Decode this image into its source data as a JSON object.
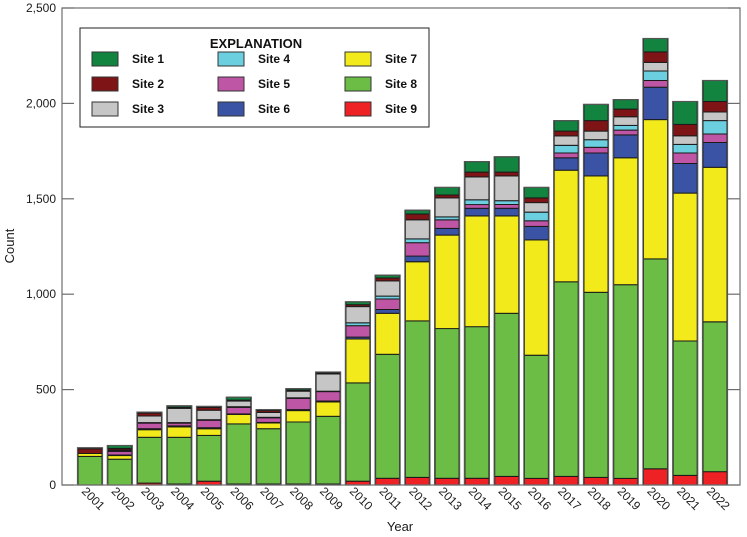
{
  "chart_data": {
    "type": "bar",
    "stacked": true,
    "title": "",
    "xlabel": "Year",
    "ylabel": "Count",
    "ylim": [
      0,
      2500
    ],
    "yticks": [
      0,
      500,
      1000,
      1500,
      2000,
      2500
    ],
    "ytick_labels": [
      "0",
      "500",
      "1,000",
      "1,500",
      "2,000",
      "2,500"
    ],
    "grid": false,
    "legend": {
      "title": "EXPLANATION",
      "placement": "top-left",
      "entries": [
        "Site 1",
        "Site 2",
        "Site 3",
        "Site 4",
        "Site 5",
        "Site 6",
        "Site 7",
        "Site 8",
        "Site 9"
      ]
    },
    "categories": [
      "2001",
      "2002",
      "2003",
      "2004",
      "2005",
      "2006",
      "2007",
      "2008",
      "2009",
      "2010",
      "2011",
      "2012",
      "2013",
      "2014",
      "2015",
      "2016",
      "2017",
      "2018",
      "2019",
      "2020",
      "2021",
      "2022"
    ],
    "stack_order_bottom_to_top": [
      "Site 9",
      "Site 8",
      "Site 7",
      "Site 6",
      "Site 5",
      "Site 4",
      "Site 3",
      "Site 2",
      "Site 1"
    ],
    "series": [
      {
        "name": "Site 1",
        "color": "#138440",
        "values": [
          5,
          15,
          5,
          8,
          5,
          15,
          5,
          8,
          5,
          15,
          15,
          20,
          40,
          55,
          80,
          55,
          55,
          85,
          50,
          70,
          120,
          110
        ]
      },
      {
        "name": "Site 2",
        "color": "#7f1416",
        "values": [
          25,
          8,
          15,
          5,
          15,
          5,
          10,
          5,
          5,
          10,
          15,
          30,
          15,
          25,
          20,
          25,
          25,
          55,
          40,
          55,
          60,
          55
        ]
      },
      {
        "name": "Site 3",
        "color": "#c6c6c6",
        "values": [
          0,
          5,
          35,
          75,
          50,
          30,
          25,
          35,
          90,
          85,
          80,
          100,
          100,
          120,
          130,
          50,
          50,
          45,
          45,
          45,
          45,
          45
        ]
      },
      {
        "name": "Site 4",
        "color": "#6ccfdf",
        "values": [
          0,
          2,
          2,
          2,
          2,
          2,
          2,
          2,
          2,
          15,
          15,
          20,
          15,
          25,
          20,
          45,
          40,
          40,
          25,
          50,
          45,
          70
        ]
      },
      {
        "name": "Site 5",
        "color": "#bf55a5",
        "values": [
          0,
          20,
          30,
          15,
          40,
          35,
          25,
          60,
          50,
          60,
          55,
          70,
          45,
          20,
          20,
          30,
          25,
          30,
          25,
          35,
          55,
          45
        ]
      },
      {
        "name": "Site 6",
        "color": "#3a53a4",
        "values": [
          0,
          2,
          5,
          5,
          5,
          3,
          3,
          5,
          5,
          10,
          20,
          30,
          35,
          40,
          40,
          70,
          65,
          120,
          120,
          170,
          155,
          130
        ]
      },
      {
        "name": "Site 7",
        "color": "#f3ea1b",
        "values": [
          15,
          20,
          40,
          55,
          35,
          50,
          30,
          60,
          75,
          230,
          215,
          310,
          490,
          580,
          510,
          605,
          585,
          610,
          665,
          730,
          775,
          810
        ]
      },
      {
        "name": "Site 8",
        "color": "#6bbd45",
        "values": [
          150,
          135,
          240,
          245,
          240,
          315,
          290,
          325,
          355,
          515,
          650,
          820,
          785,
          795,
          855,
          645,
          1020,
          970,
          1015,
          1100,
          705,
          785
        ]
      },
      {
        "name": "Site 9",
        "color": "#ee2124",
        "values": [
          0,
          0,
          10,
          5,
          20,
          5,
          5,
          5,
          5,
          20,
          35,
          40,
          35,
          35,
          45,
          35,
          45,
          40,
          35,
          85,
          50,
          70
        ]
      }
    ]
  }
}
